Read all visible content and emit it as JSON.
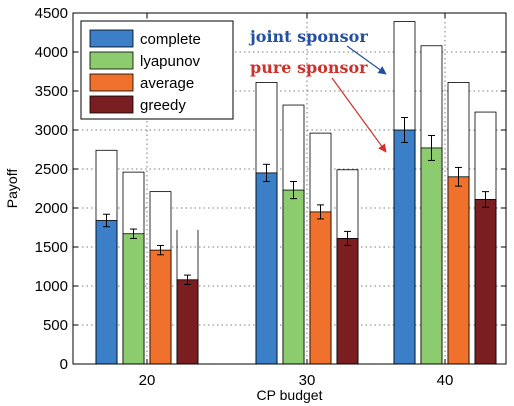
{
  "chart_data": {
    "type": "bar",
    "xlabel": "CP budget",
    "ylabel": "Payoff",
    "categories": [
      "20",
      "30",
      "40"
    ],
    "ylim": [
      0,
      4500
    ],
    "yticks": [
      0,
      500,
      1000,
      1500,
      2000,
      2500,
      3000,
      3500,
      4000,
      4500
    ],
    "grid": true,
    "legend_position": "top-left",
    "series": [
      {
        "name": "complete",
        "color": "#3A7FC7",
        "values": [
          1840,
          2450,
          3000
        ],
        "errors": [
          80,
          110,
          160
        ],
        "joint_totals": [
          2740,
          3610,
          4390
        ]
      },
      {
        "name": "lyapunov",
        "color": "#8DCB6F",
        "values": [
          1670,
          2230,
          2770
        ],
        "errors": [
          60,
          110,
          160
        ],
        "joint_totals": [
          2460,
          3320,
          4080
        ]
      },
      {
        "name": "average",
        "color": "#F0712B",
        "values": [
          1460,
          1950,
          2400
        ],
        "errors": [
          60,
          90,
          120
        ],
        "joint_totals": [
          2210,
          2960,
          3610
        ]
      },
      {
        "name": "greedy",
        "color": "#7A1E22",
        "values": [
          1080,
          1610,
          2110
        ],
        "errors": [
          60,
          90,
          100
        ],
        "joint_totals": [
          1720,
          2490,
          3230
        ]
      }
    ],
    "annotations": [
      {
        "text": "joint sponsor",
        "color": "#2350A0"
      },
      {
        "text": "pure sponsor",
        "color": "#D0302A"
      }
    ]
  }
}
